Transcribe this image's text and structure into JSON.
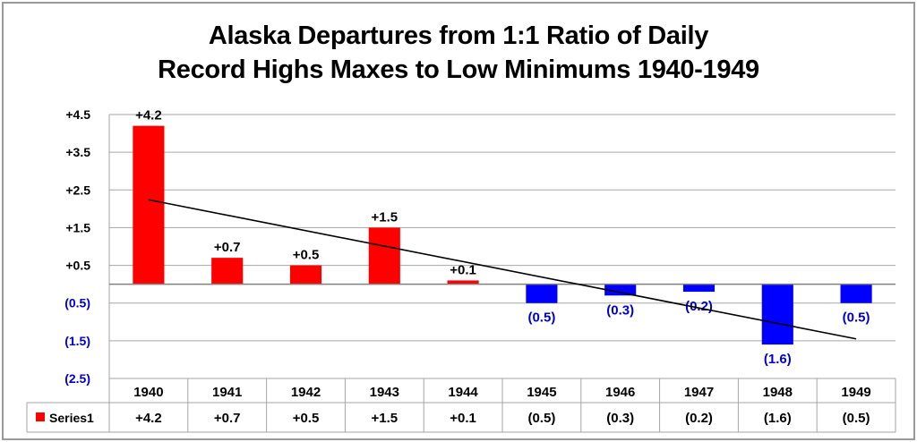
{
  "chart_data": {
    "type": "bar",
    "title_line1": "Alaska Departures from 1:1 Ratio of Daily",
    "title_line2": "Record Highs Maxes to Low Minimums 1940-1949",
    "categories": [
      "1940",
      "1941",
      "1942",
      "1943",
      "1944",
      "1945",
      "1946",
      "1947",
      "1948",
      "1949"
    ],
    "series": [
      {
        "name": "Series1",
        "values": [
          4.2,
          0.7,
          0.5,
          1.5,
          0.1,
          -0.5,
          -0.3,
          -0.2,
          -1.6,
          -0.5
        ],
        "labels": [
          "+4.2",
          "+0.7",
          "+0.5",
          "+1.5",
          "+0.1",
          "(0.5)",
          "(0.3)",
          "(0.2)",
          "(1.6)",
          "(0.5)"
        ]
      }
    ],
    "y_ticks": [
      {
        "value": 4.5,
        "label": "+4.5"
      },
      {
        "value": 3.5,
        "label": "+3.5"
      },
      {
        "value": 2.5,
        "label": "+2.5"
      },
      {
        "value": 1.5,
        "label": "+1.5"
      },
      {
        "value": 0.5,
        "label": "+0.5"
      },
      {
        "value": -0.5,
        "label": "(0.5)"
      },
      {
        "value": -1.5,
        "label": "(1.5)"
      },
      {
        "value": -2.5,
        "label": "(2.5)"
      }
    ],
    "ylim": [
      -2.5,
      4.5
    ],
    "trendline": {
      "start": 2.24,
      "end": -1.45
    },
    "grid": true,
    "data_table": true,
    "colors": {
      "positive": "#ff0000",
      "negative": "#0000ff",
      "negative_text": "#0000cc",
      "trendline": "#000000",
      "grid": "#a6a6a6"
    }
  }
}
